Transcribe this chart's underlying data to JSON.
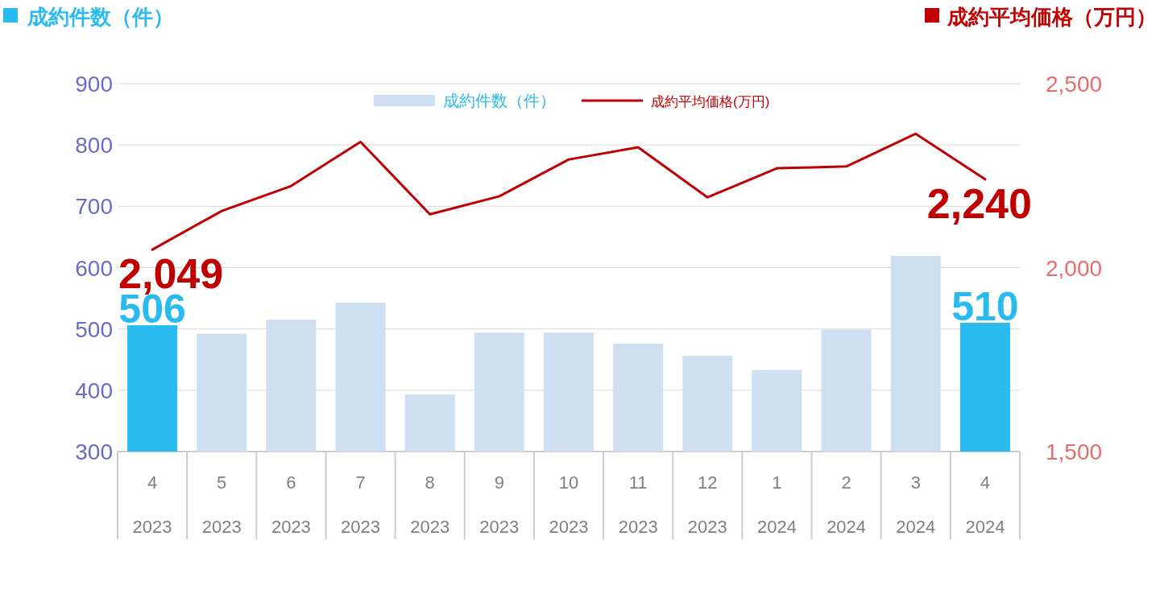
{
  "chart_data": {
    "type": "bar",
    "ylabel": "成約件数（件）",
    "y2label": "成約平均価格（万円）",
    "categories": [
      "4\n2023",
      "5\n2023",
      "6\n2023",
      "7\n2023",
      "8\n2023",
      "9\n2023",
      "10\n2023",
      "11\n2023",
      "12\n2023",
      "1\n2024",
      "2\n2024",
      "3\n2024",
      "4\n2024"
    ],
    "series": [
      {
        "name": "成約件数（件）",
        "colors": [
          "#29bbef",
          "#cfdff2",
          "#cfdff2",
          "#cfdff2",
          "#cfdff2",
          "#cfdff2",
          "#cfdff2",
          "#cfdff2",
          "#cfdff2",
          "#cfdff2",
          "#cfdff2",
          "#cfdff2",
          "#29bbef"
        ],
        "values": [
          506,
          492,
          515,
          543,
          393,
          494,
          494,
          476,
          456,
          433,
          499,
          619,
          510
        ],
        "value_labels": [
          "506",
          null,
          null,
          null,
          null,
          null,
          null,
          null,
          null,
          null,
          null,
          null,
          "510"
        ]
      },
      {
        "name": "成約平均価格(万円)",
        "type": "line",
        "axis": "y2",
        "color": "#c00000",
        "values": [
          2049,
          2154,
          2222,
          2342,
          2145,
          2194,
          2294,
          2327,
          2191,
          2270,
          2275,
          2364,
          2240
        ],
        "value_labels": [
          "2,049",
          null,
          null,
          null,
          null,
          null,
          null,
          null,
          null,
          null,
          null,
          null,
          "2,240"
        ]
      }
    ],
    "ylim": [
      300,
      900
    ],
    "yticks": [
      300,
      400,
      500,
      600,
      700,
      800,
      900
    ],
    "y2lim": [
      1500,
      2500
    ],
    "y2ticks": [
      {
        "value": 1500,
        "label": "1,500"
      },
      {
        "value": 2000,
        "label": "2,000"
      },
      {
        "value": 2500,
        "label": "2,500"
      }
    ],
    "grid": "y",
    "legend": "top"
  }
}
